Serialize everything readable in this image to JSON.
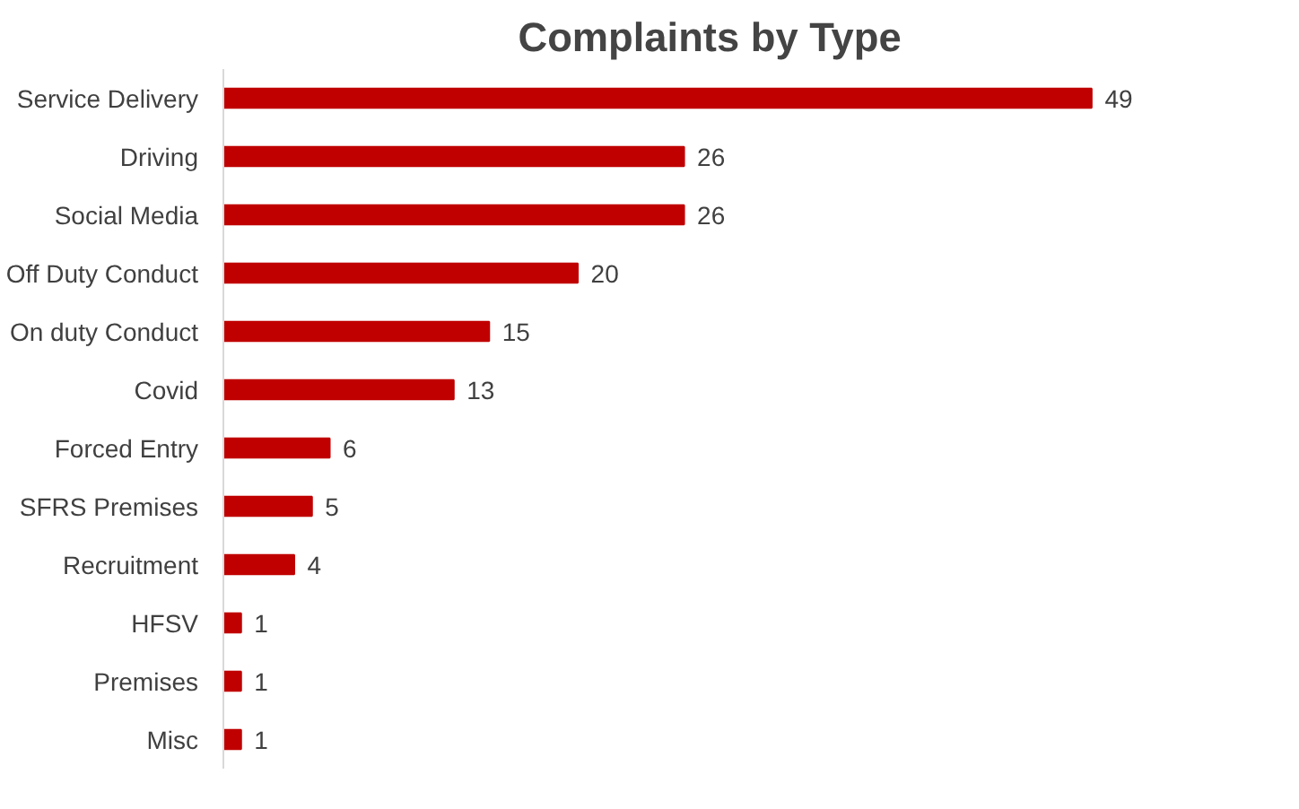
{
  "chart_data": {
    "type": "bar",
    "orientation": "horizontal",
    "title": "Complaints by Type",
    "categories": [
      "Service Delivery",
      "Driving",
      "Social Media",
      "Off Duty Conduct",
      "On duty Conduct",
      "Covid",
      "Forced Entry",
      "SFRS Premises",
      "Recruitment",
      "HFSV",
      "Premises",
      "Misc"
    ],
    "values": [
      49,
      26,
      26,
      20,
      15,
      13,
      6,
      5,
      4,
      1,
      1,
      1
    ],
    "color": "#c00000",
    "data_labels": true
  }
}
